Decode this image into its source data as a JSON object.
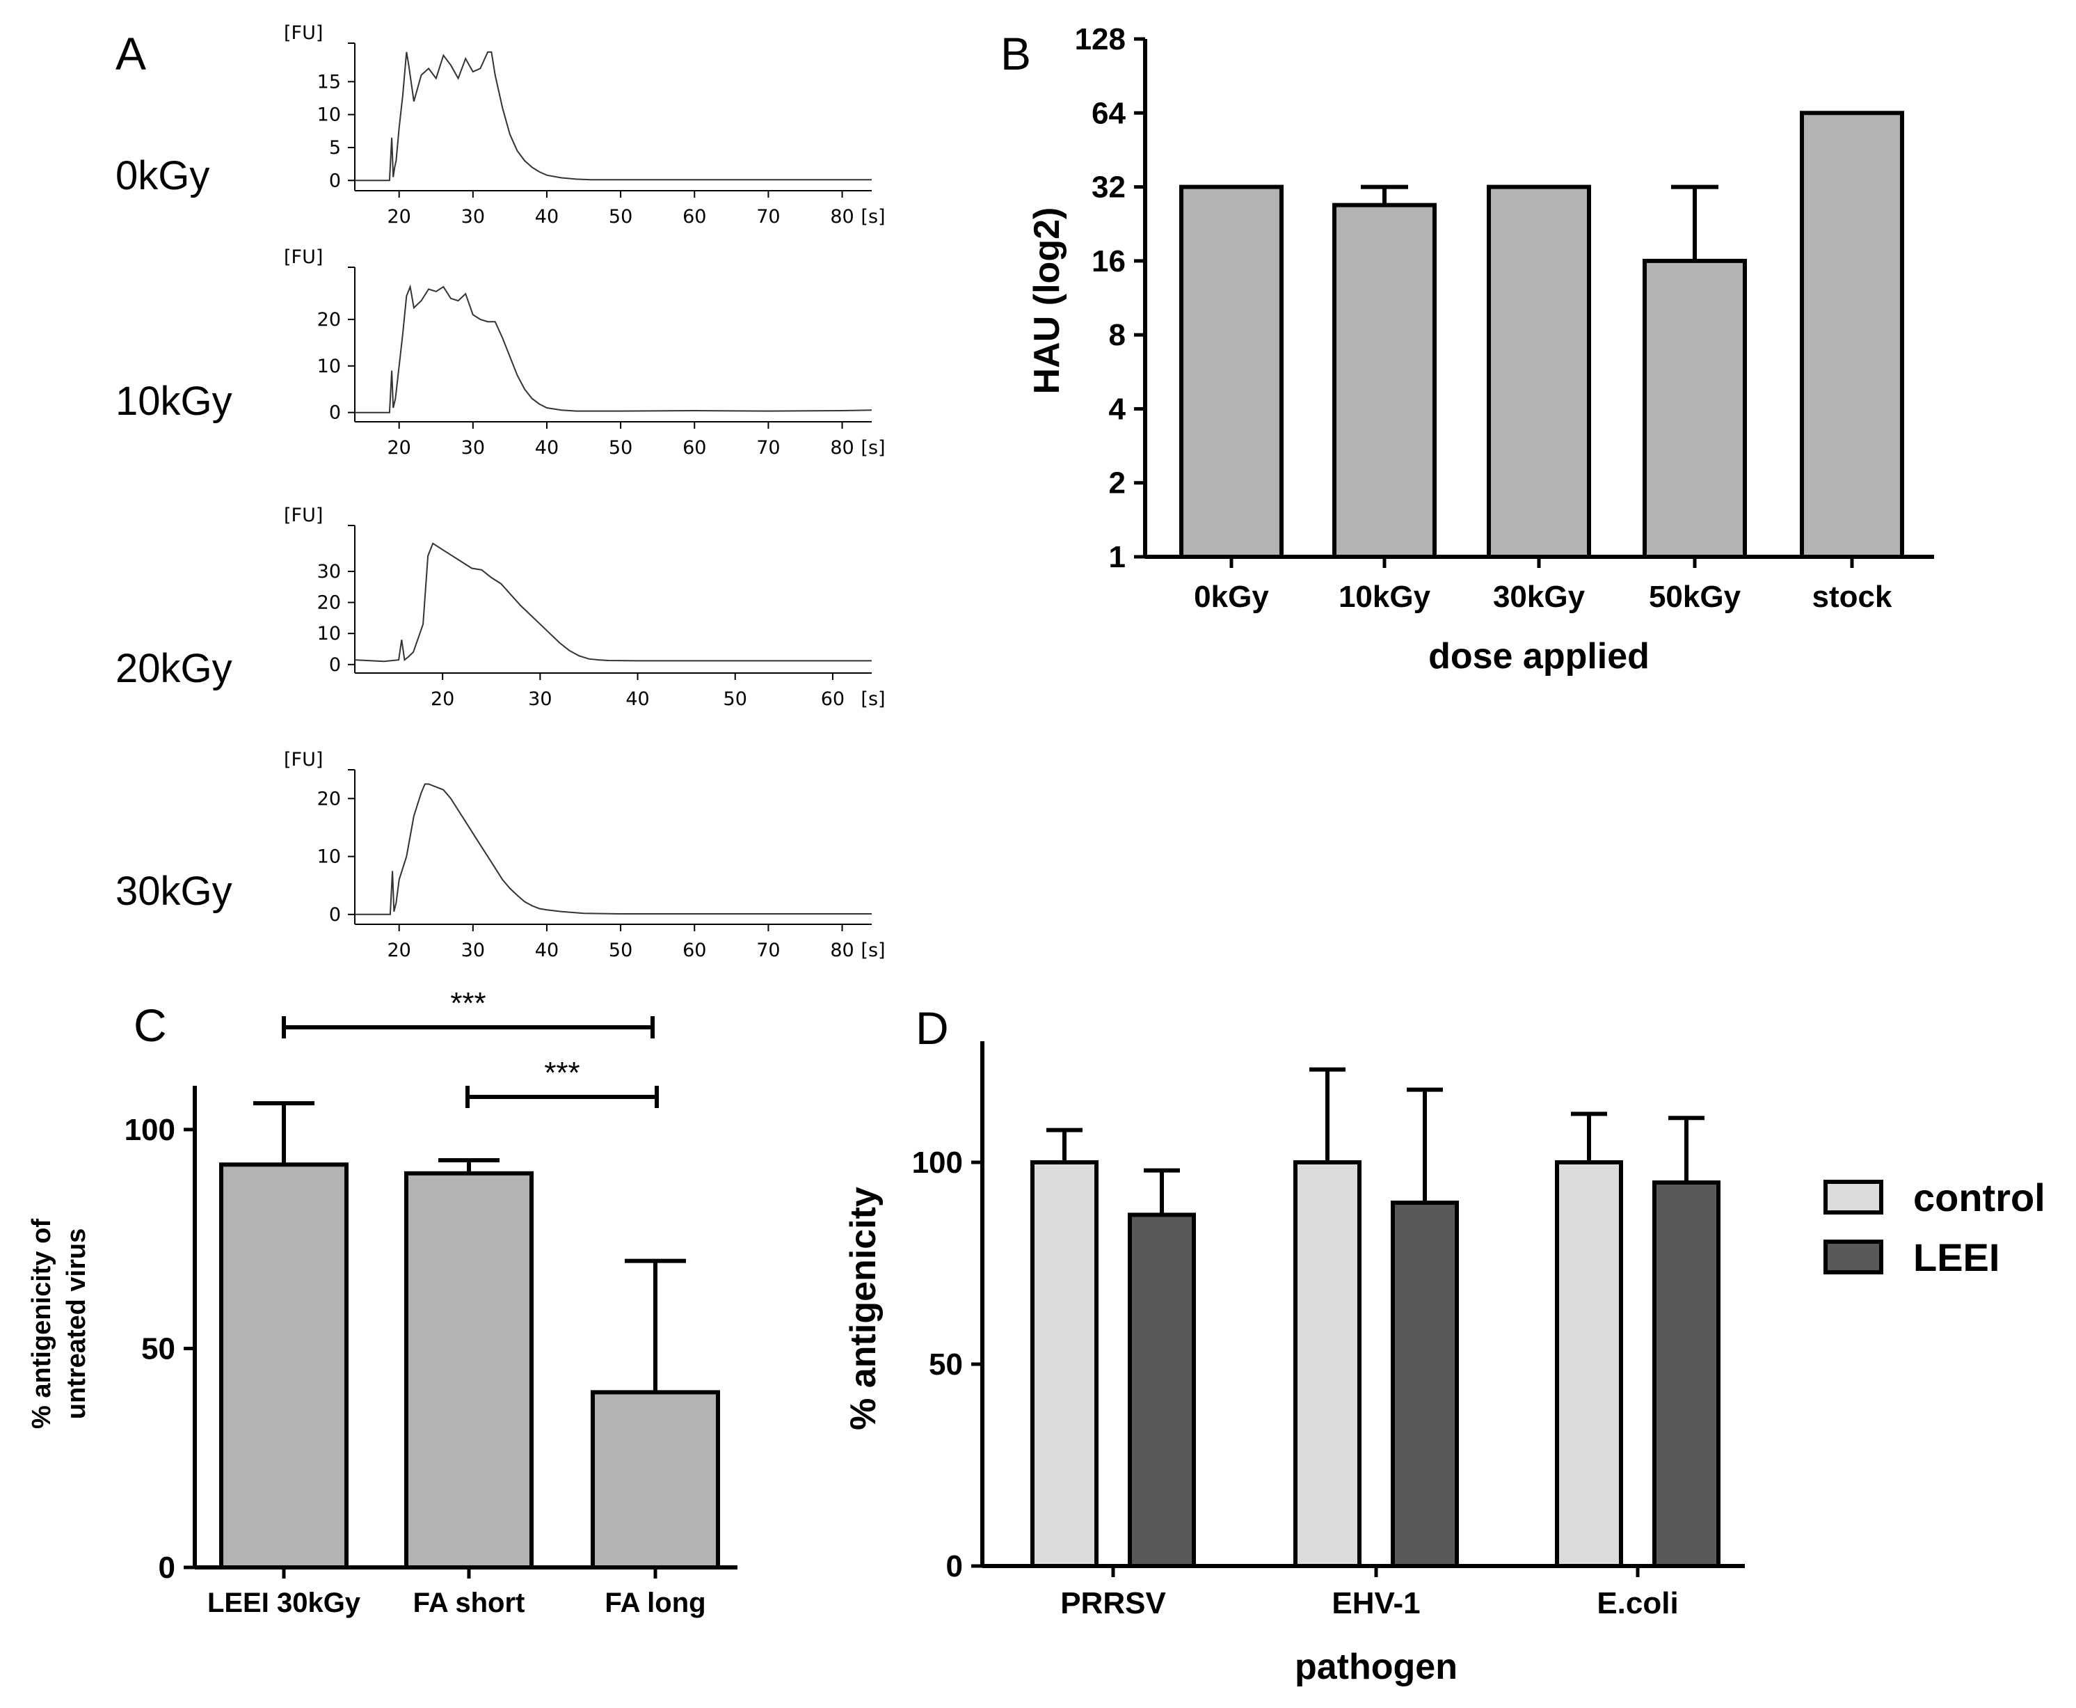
{
  "chart_data": [
    {
      "panel": "A",
      "type": "line",
      "y_unit": "[FU]",
      "x_unit": "[s]",
      "traces": [
        {
          "label": "0kGy",
          "xlim": [
            14,
            84
          ],
          "ylim": [
            -0.5,
            20
          ],
          "xticks": [
            20,
            30,
            40,
            50,
            60,
            70,
            80
          ],
          "yticks": [
            0,
            5,
            10,
            15
          ],
          "x": [
            14,
            18.7,
            19.0,
            19.2,
            19.4,
            19.6,
            20,
            20.5,
            21,
            21.3,
            22,
            23,
            24,
            25,
            26,
            27,
            28,
            29,
            30,
            31,
            32,
            32.5,
            33,
            34,
            35,
            36,
            37,
            38,
            39,
            40,
            42,
            44,
            46,
            50,
            60,
            70,
            80,
            84
          ],
          "y": [
            0,
            0,
            6.5,
            0.5,
            2.0,
            3.0,
            8.0,
            13.0,
            19.5,
            17.5,
            12.0,
            16.0,
            17.0,
            15.5,
            19.0,
            17.5,
            15.5,
            18.5,
            16.5,
            17.0,
            19.5,
            19.5,
            16.0,
            11.0,
            7.0,
            4.5,
            3.0,
            2.0,
            1.3,
            0.8,
            0.4,
            0.2,
            0.1,
            0.1,
            0.1,
            0.1,
            0.1,
            0.1
          ]
        },
        {
          "label": "10kGy",
          "xlim": [
            14,
            84
          ],
          "ylim": [
            -0.5,
            30
          ],
          "xticks": [
            20,
            30,
            40,
            50,
            60,
            70,
            80
          ],
          "yticks": [
            0,
            10,
            20
          ],
          "x": [
            14,
            18.7,
            19.0,
            19.2,
            19.5,
            20,
            20.5,
            21,
            21.5,
            22,
            23,
            24,
            25,
            26,
            27,
            28,
            29,
            30,
            31,
            32,
            33,
            34,
            35,
            36,
            37,
            38,
            39,
            40,
            42,
            44,
            50,
            60,
            70,
            80,
            84
          ],
          "y": [
            0,
            0,
            9.0,
            1.0,
            3.0,
            10.0,
            17.0,
            25.0,
            27.0,
            22.5,
            24.0,
            26.5,
            26.0,
            27.0,
            24.5,
            24.0,
            25.5,
            21.0,
            20.0,
            19.5,
            19.5,
            16.0,
            12.0,
            8.0,
            5.0,
            3.0,
            1.8,
            1.0,
            0.5,
            0.3,
            0.3,
            0.4,
            0.3,
            0.4,
            0.5
          ]
        },
        {
          "label": "20kGy",
          "xlim": [
            11,
            64
          ],
          "ylim": [
            -0.5,
            43
          ],
          "xticks": [
            20,
            30,
            40,
            50,
            60
          ],
          "yticks": [
            0,
            10,
            20,
            30
          ],
          "x": [
            11,
            14,
            15.5,
            15.8,
            16.1,
            16.5,
            17,
            18,
            18.5,
            19,
            20,
            21,
            22,
            23,
            24,
            25,
            26,
            27,
            28,
            29,
            30,
            31,
            32,
            33,
            34,
            35,
            36,
            37,
            40,
            50,
            64
          ],
          "y": [
            1.5,
            1.0,
            1.5,
            8.0,
            1.5,
            2.5,
            4.0,
            13.0,
            35.0,
            39.0,
            37.0,
            35.0,
            33.0,
            31.0,
            30.5,
            28.0,
            26.0,
            22.5,
            19.0,
            16.0,
            13.0,
            10.0,
            7.0,
            4.5,
            2.8,
            1.8,
            1.5,
            1.3,
            1.2,
            1.2,
            1.2
          ]
        },
        {
          "label": "30kGy",
          "xlim": [
            14,
            84
          ],
          "ylim": [
            -0.5,
            24
          ],
          "xticks": [
            20,
            30,
            40,
            50,
            60,
            70,
            80
          ],
          "yticks": [
            0,
            10,
            20
          ],
          "x": [
            14,
            18.8,
            19.1,
            19.3,
            19.6,
            20,
            21,
            22,
            23,
            23.5,
            24,
            25,
            26,
            27,
            28,
            29,
            30,
            31,
            32,
            33,
            34,
            35,
            36,
            37,
            38,
            39,
            40,
            42,
            45,
            50,
            60,
            70,
            80,
            84
          ],
          "y": [
            0,
            0,
            7.5,
            0.5,
            2.0,
            6.0,
            10.0,
            17.0,
            21.0,
            22.5,
            22.5,
            22.0,
            21.5,
            20.0,
            18.0,
            16.0,
            14.0,
            12.0,
            10.0,
            8.0,
            6.0,
            4.5,
            3.3,
            2.2,
            1.5,
            1.0,
            0.8,
            0.5,
            0.2,
            0.1,
            0.1,
            0.1,
            0.1,
            0.1
          ]
        }
      ]
    },
    {
      "panel": "B",
      "type": "bar",
      "xlabel": "dose applied",
      "ylabel": "HAU  (log2)",
      "y_scale": "log2",
      "ylim": [
        1,
        128
      ],
      "yticks": [
        1,
        2,
        4,
        8,
        16,
        32,
        64,
        128
      ],
      "categories": [
        "0kGy",
        "10kGy",
        "30kGy",
        "50kGy",
        "stock"
      ],
      "values": [
        32,
        27,
        32,
        16,
        64
      ],
      "error_upper": [
        32,
        32,
        32,
        32,
        64
      ],
      "bar_color": "#b2b3b5"
    },
    {
      "panel": "C",
      "type": "bar",
      "ylabel": "% antigenicity of untreated virus",
      "ylabel_lines": [
        "% antigenicity of",
        "untreated virus"
      ],
      "ylim": [
        0,
        110
      ],
      "yticks": [
        0,
        50,
        100
      ],
      "categories": [
        "LEEI 30kGy",
        "FA short",
        "FA long"
      ],
      "values": [
        92,
        90,
        40
      ],
      "error_upper": [
        106,
        93,
        70
      ],
      "bar_color": "#b2b3b5",
      "significance": [
        {
          "from": "LEEI 30kGy",
          "to": "FA long",
          "label": "***"
        },
        {
          "from": "FA short",
          "to": "FA long",
          "label": "***"
        }
      ]
    },
    {
      "panel": "D",
      "type": "bar",
      "xlabel": "pathogen",
      "ylabel": "% antigenicity",
      "ylim": [
        0,
        130
      ],
      "yticks": [
        0,
        50,
        100
      ],
      "categories": [
        "PRRSV",
        "EHV-1",
        "E.coli"
      ],
      "series": [
        {
          "name": "control",
          "values": [
            100,
            100,
            100
          ],
          "error_upper": [
            108,
            123,
            112
          ],
          "color": "#dadcdd"
        },
        {
          "name": "LEEI",
          "values": [
            87,
            90,
            95
          ],
          "error_upper": [
            98,
            118,
            111
          ],
          "color": "#58595b"
        }
      ]
    }
  ],
  "labels": {
    "panels": {
      "a": "A",
      "b": "B",
      "c": "C",
      "d": "D"
    },
    "doses": [
      "0kGy",
      "10kGy",
      "20kGy",
      "30kGy"
    ]
  }
}
